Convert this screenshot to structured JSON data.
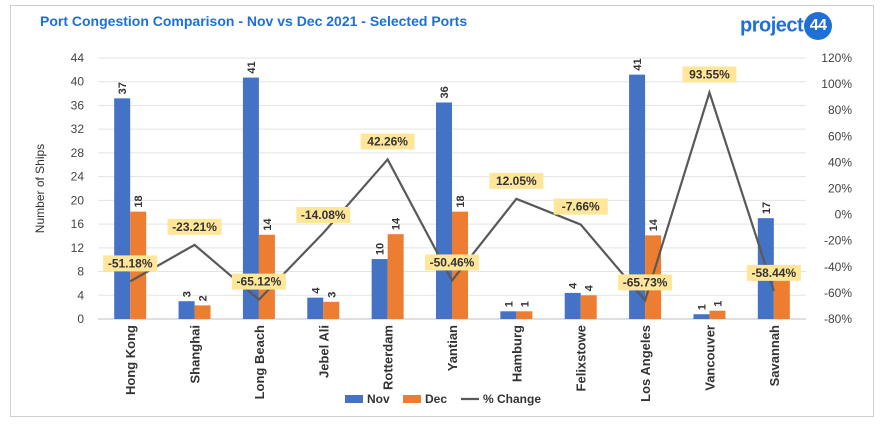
{
  "colors": {
    "nov": "#4472c4",
    "dec": "#ed7d31",
    "change": "#595959",
    "label_bg": "#ffe699",
    "title": "#1f6fd6"
  },
  "logo": {
    "text": "project",
    "number": "44"
  },
  "chart_data": {
    "type": "bar",
    "title": "Port Congestion Comparison - Nov vs Dec 2021 - Selected Ports",
    "ylabel": "Number of Ships",
    "xlabel": "",
    "ylim": [
      0,
      44
    ],
    "yticks": [
      0,
      4,
      8,
      12,
      16,
      20,
      24,
      28,
      32,
      36,
      40,
      44
    ],
    "y2lim": [
      -80,
      120
    ],
    "y2ticks": [
      -80,
      -60,
      -40,
      -20,
      0,
      20,
      40,
      60,
      80,
      100,
      120
    ],
    "y2tick_labels": [
      "-80%",
      "-60%",
      "-40%",
      "-20%",
      "0%",
      "20%",
      "40%",
      "60%",
      "80%",
      "100%",
      "120%"
    ],
    "categories": [
      "Hong Kong",
      "Shanghai",
      "Long Beach",
      "Jebel Ali",
      "Rotterdam",
      "Yantian",
      "Hamburg",
      "Felixstowe",
      "Los Angeles",
      "Vancouver",
      "Savannah"
    ],
    "series": [
      {
        "name": "Nov",
        "type": "bar",
        "values": [
          37,
          3,
          41,
          4,
          10,
          36,
          1,
          4,
          41,
          1,
          17
        ],
        "display_values": [
          37.2,
          3,
          40.7,
          3.6,
          10.1,
          36.5,
          1.3,
          4.4,
          41.2,
          0.8,
          17
        ]
      },
      {
        "name": "Dec",
        "type": "bar",
        "values": [
          18,
          2,
          14,
          3,
          14,
          18,
          1,
          4,
          14,
          1,
          7
        ],
        "display_values": [
          18.1,
          2.3,
          14.2,
          2.9,
          14.3,
          18.1,
          1.3,
          4,
          14.1,
          1.4,
          7
        ]
      },
      {
        "name": "% Change",
        "type": "line",
        "axis": "secondary",
        "values": [
          -51.18,
          -23.21,
          -65.12,
          -14.08,
          42.26,
          -50.46,
          12.05,
          -7.66,
          -65.73,
          93.55,
          -58.44
        ],
        "labels": [
          "-51.18%",
          "-23.21%",
          "-65.12%",
          "-14.08%",
          "42.26%",
          "-50.46%",
          "12.05%",
          "-7.66%",
          "-65.73%",
          "93.55%",
          "-58.44%"
        ]
      }
    ],
    "legend": [
      "Nov",
      "Dec",
      "% Change"
    ],
    "legend_position": "bottom"
  }
}
